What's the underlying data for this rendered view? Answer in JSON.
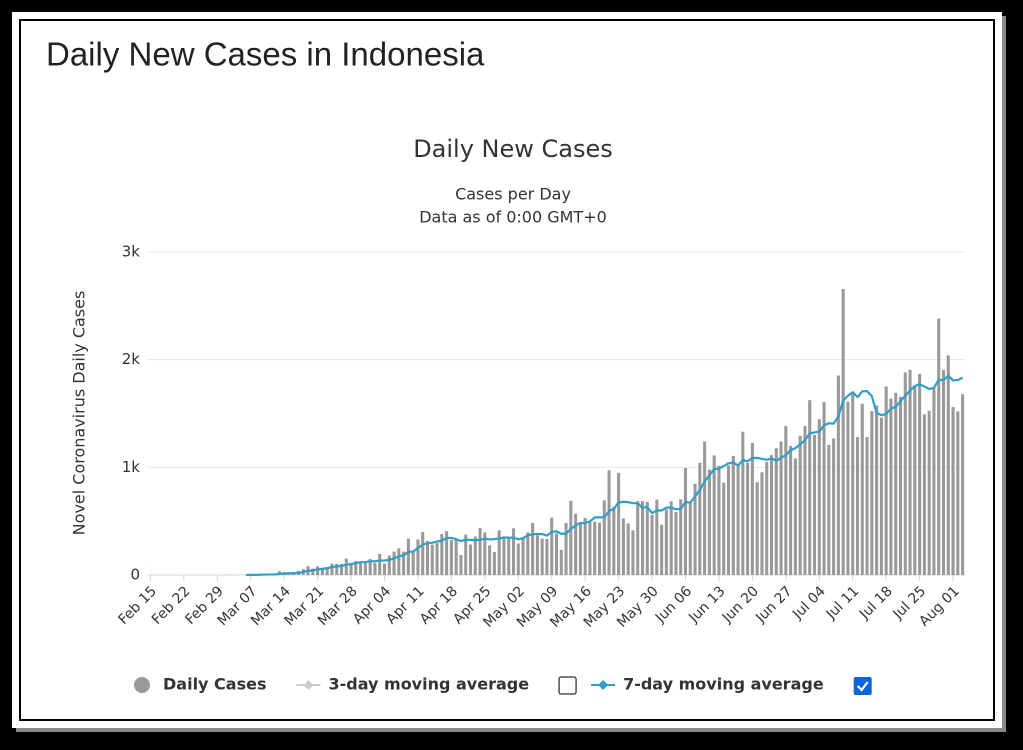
{
  "page_title": "Daily New Cases in Indonesia",
  "chart_data": {
    "type": "bar",
    "title": "Daily New Cases",
    "subtitle": [
      "Cases per Day",
      "Data as of 0:00 GMT+0"
    ],
    "y_label": "Novel Coronavirus Daily Cases",
    "ylim": [
      0,
      3000
    ],
    "yticks": [
      0,
      {
        "value": 1000,
        "label": "1k"
      },
      {
        "value": 2000,
        "label": "2k"
      },
      {
        "value": 3000,
        "label": "3k"
      }
    ],
    "grid": true,
    "categories": [
      "Feb 15",
      null,
      null,
      null,
      null,
      null,
      null,
      "Feb 22",
      null,
      null,
      null,
      null,
      null,
      null,
      "Feb 29",
      null,
      null,
      null,
      null,
      null,
      null,
      "Mar 07",
      null,
      null,
      null,
      null,
      null,
      null,
      "Mar 14",
      null,
      null,
      null,
      null,
      null,
      null,
      "Mar 21",
      null,
      null,
      null,
      null,
      null,
      null,
      "Mar 28",
      null,
      null,
      null,
      null,
      null,
      null,
      "Apr 04",
      null,
      null,
      null,
      null,
      null,
      null,
      "Apr 11",
      null,
      null,
      null,
      null,
      null,
      null,
      "Apr 18",
      null,
      null,
      null,
      null,
      null,
      null,
      "Apr 25",
      null,
      null,
      null,
      null,
      null,
      null,
      "May 02",
      null,
      null,
      null,
      null,
      null,
      null,
      "May 09",
      null,
      null,
      null,
      null,
      null,
      null,
      "May 16",
      null,
      null,
      null,
      null,
      null,
      null,
      "May 23",
      null,
      null,
      null,
      null,
      null,
      null,
      "May 30",
      null,
      null,
      null,
      null,
      null,
      null,
      "Jun 06",
      null,
      null,
      null,
      null,
      null,
      null,
      "Jun 13",
      null,
      null,
      null,
      null,
      null,
      null,
      "Jun 20",
      null,
      null,
      null,
      null,
      null,
      null,
      "Jun 27",
      null,
      null,
      null,
      null,
      null,
      null,
      "Jul 04",
      null,
      null,
      null,
      null,
      null,
      null,
      "Jul 11",
      null,
      null,
      null,
      null,
      null,
      null,
      "Jul 18",
      null,
      null,
      null,
      null,
      null,
      null,
      "Jul 25",
      null,
      null,
      null,
      null,
      null,
      null,
      "Aug 01",
      null,
      null
    ],
    "series": [
      {
        "name": "Daily Cases",
        "type": "bar",
        "color": "#999999",
        "values": [
          0,
          0,
          0,
          0,
          0,
          0,
          0,
          0,
          0,
          0,
          0,
          0,
          0,
          0,
          0,
          0,
          2,
          0,
          0,
          0,
          2,
          0,
          2,
          13,
          8,
          7,
          0,
          35,
          27,
          21,
          17,
          38,
          55,
          82,
          60,
          81,
          64,
          65,
          107,
          104,
          103,
          153,
          109,
          130,
          129,
          114,
          149,
          113,
          196,
          106,
          181,
          218,
          247,
          218,
          337,
          219,
          330,
          399,
          316,
          282,
          297,
          380,
          407,
          325,
          327,
          185,
          375,
          283,
          357,
          436,
          396,
          275,
          214,
          415,
          347,
          347,
          433,
          292,
          349,
          395,
          484,
          367,
          338,
          336,
          533,
          387,
          233,
          484,
          689,
          568,
          490,
          529,
          489,
          496,
          486,
          693,
          973,
          634,
          949,
          526,
          479,
          415,
          686,
          687,
          678,
          557,
          700,
          467,
          609,
          684,
          585,
          703,
          993,
          672,
          847,
          1043,
          1241,
          979,
          1111,
          1014,
          857,
          1017,
          1106,
          1031,
          1331,
          1041,
          1226,
          862,
          954,
          1051,
          1113,
          1178,
          1240,
          1385,
          1198,
          1082,
          1293,
          1385,
          1624,
          1301,
          1447,
          1607,
          1209,
          1268,
          1853,
          2657,
          1611,
          1681,
          1282,
          1591,
          1282,
          1522,
          1574,
          1462,
          1752,
          1639,
          1693,
          1655,
          1882,
          1906,
          1761,
          1868,
          1492,
          1525,
          1748,
          2381,
          1904,
          2040,
          1560,
          1519,
          1679
        ]
      },
      {
        "name": "3-day moving average",
        "type": "line",
        "color": "#cccccc",
        "visible": false,
        "checked": false
      },
      {
        "name": "7-day moving average",
        "type": "line",
        "color": "#2f9fc9",
        "visible": true,
        "checked": true,
        "values": [
          null,
          null,
          null,
          null,
          null,
          null,
          null,
          null,
          null,
          null,
          null,
          null,
          null,
          null,
          null,
          null,
          null,
          null,
          null,
          null,
          1,
          1,
          1,
          2,
          4,
          5,
          5,
          9,
          13,
          16,
          16,
          21,
          28,
          39,
          43,
          51,
          57,
          64,
          73,
          80,
          83,
          97,
          101,
          110,
          119,
          120,
          127,
          128,
          134,
          134,
          141,
          154,
          173,
          183,
          215,
          218,
          250,
          281,
          295,
          300,
          311,
          318,
          344,
          344,
          333,
          315,
          328,
          326,
          323,
          327,
          337,
          330,
          334,
          339,
          349,
          347,
          347,
          332,
          342,
          368,
          378,
          381,
          380,
          366,
          400,
          406,
          383,
          383,
          429,
          461,
          483,
          483,
          497,
          535,
          535,
          536,
          594,
          614,
          674,
          680,
          677,
          667,
          666,
          625,
          631,
          575,
          600,
          599,
          626,
          626,
          611,
          615,
          677,
          673,
          728,
          790,
          869,
          925,
          984,
          987,
          1013,
          1037,
          1046,
          1016,
          1067,
          1057,
          1087,
          1088,
          1079,
          1071,
          1083,
          1061,
          1089,
          1112,
          1160,
          1178,
          1213,
          1252,
          1315,
          1324,
          1333,
          1391,
          1409,
          1406,
          1473,
          1620,
          1665,
          1698,
          1652,
          1706,
          1708,
          1661,
          1506,
          1485,
          1495,
          1546,
          1561,
          1614,
          1665,
          1713,
          1755,
          1772,
          1751,
          1727,
          1740,
          1812,
          1811,
          1851,
          1807,
          1811,
          1833
        ]
      }
    ]
  }
}
